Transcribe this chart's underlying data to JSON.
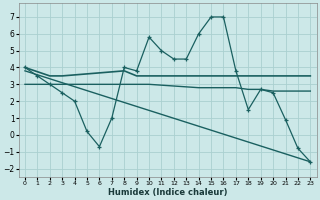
{
  "xlabel": "Humidex (Indice chaleur)",
  "bg_color": "#cce8e8",
  "grid_color": "#aad0d0",
  "line_color": "#1a6060",
  "xlim": [
    -0.5,
    23.5
  ],
  "ylim": [
    -2.5,
    7.8
  ],
  "yticks": [
    -2,
    -1,
    0,
    1,
    2,
    3,
    4,
    5,
    6,
    7
  ],
  "xticks": [
    0,
    1,
    2,
    3,
    4,
    5,
    6,
    7,
    8,
    9,
    10,
    11,
    12,
    13,
    14,
    15,
    16,
    17,
    18,
    19,
    20,
    21,
    22,
    23
  ],
  "line1_x": [
    0,
    1,
    2,
    3,
    4,
    5,
    6,
    7,
    8,
    9,
    10,
    11,
    12,
    13,
    14,
    15,
    16,
    17,
    18,
    19,
    20,
    21,
    22,
    23
  ],
  "line1_y": [
    4.0,
    3.5,
    3.0,
    2.5,
    2.0,
    0.2,
    -0.7,
    1.0,
    4.0,
    3.8,
    5.8,
    5.0,
    4.5,
    4.5,
    6.0,
    7.0,
    7.0,
    3.8,
    1.5,
    2.7,
    2.5,
    0.9,
    -0.8,
    -1.6
  ],
  "line2_x": [
    0,
    2,
    3,
    8,
    9,
    23
  ],
  "line2_y": [
    4.0,
    3.5,
    3.5,
    3.8,
    3.5,
    3.5
  ],
  "line3_x": [
    0,
    23
  ],
  "line3_y": [
    3.8,
    -1.6
  ],
  "line4_x": [
    0,
    8,
    9,
    10,
    14,
    15,
    16,
    17,
    18,
    19,
    20,
    21,
    23
  ],
  "line4_y": [
    3.0,
    3.0,
    3.0,
    3.0,
    2.8,
    2.8,
    2.8,
    2.8,
    2.7,
    2.7,
    2.6,
    2.6,
    2.6
  ]
}
